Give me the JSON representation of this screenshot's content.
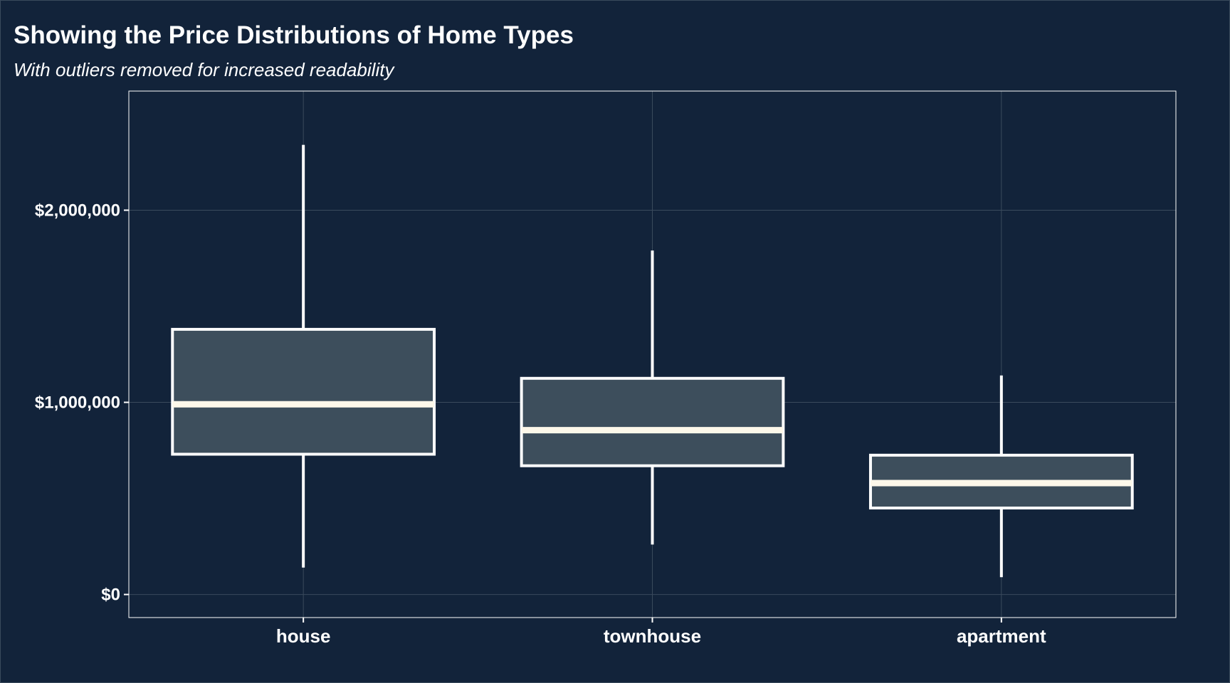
{
  "colors": {
    "background": "#12233a",
    "panel_border": "#ffffff",
    "grid": "#3a4a5c",
    "box_fill": "#3d4e5c",
    "box_stroke": "#ffffff",
    "median": "#fdf8ea",
    "text": "#ffffff"
  },
  "chart_data": {
    "type": "boxplot",
    "title": "Showing the Price Distributions of Home Types",
    "subtitle": "With outliers removed for increased readability",
    "xlabel": "",
    "ylabel": "",
    "categories": [
      "house",
      "townhouse",
      "apartment"
    ],
    "boxes": [
      {
        "category": "house",
        "whisker_low": 140000,
        "q1": 730000,
        "median": 990000,
        "q3": 1380000,
        "whisker_high": 2340000
      },
      {
        "category": "townhouse",
        "whisker_low": 260000,
        "q1": 670000,
        "median": 855000,
        "q3": 1125000,
        "whisker_high": 1790000
      },
      {
        "category": "apartment",
        "whisker_low": 90000,
        "q1": 450000,
        "median": 580000,
        "q3": 725000,
        "whisker_high": 1140000
      }
    ],
    "yticks": [
      0,
      1000000,
      2000000
    ],
    "ytick_labels": [
      "$0",
      "$1,000,000",
      "$2,000,000"
    ],
    "ylim": [
      -120000,
      2620000
    ],
    "grid": true,
    "legend": "none"
  }
}
